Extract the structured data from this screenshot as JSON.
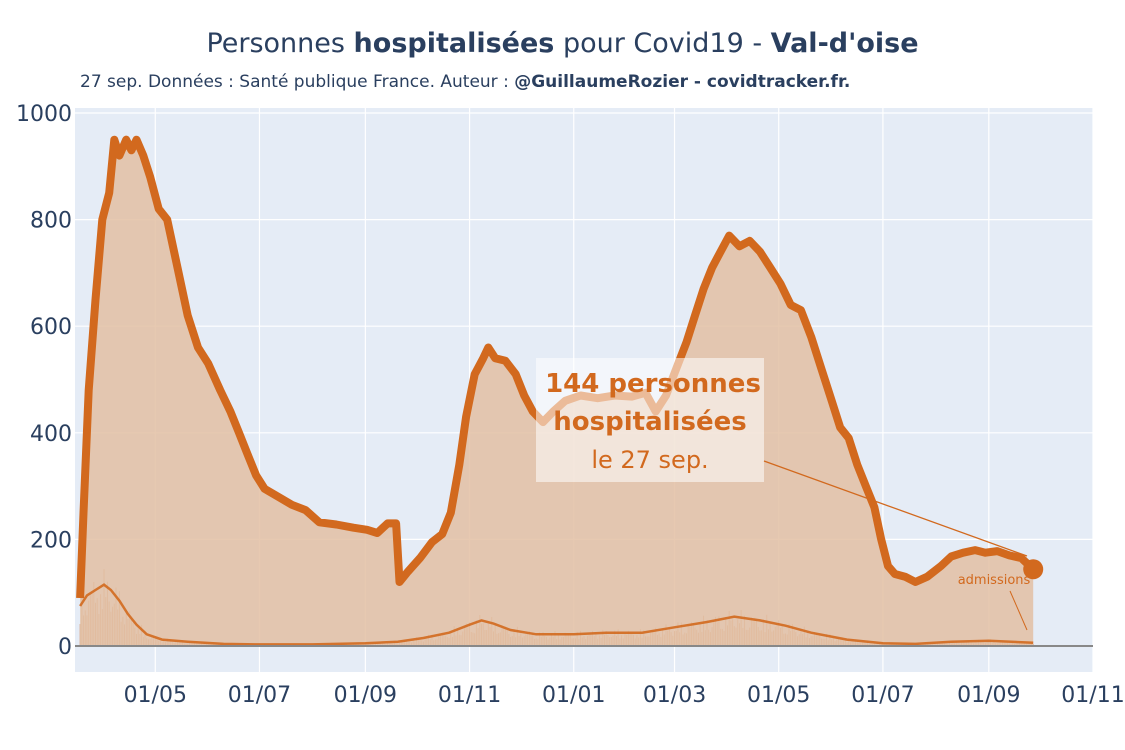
{
  "header": {
    "title_pre": "Personnes ",
    "title_bold1": "hospitalisées",
    "title_mid": " pour Covid19 - ",
    "title_bold2": "Val-d'oise",
    "subtitle_pre": "27 sep. Données : Santé publique France. Auteur : ",
    "subtitle_bold": "@GuillaumeRozier - covidtracker.fr."
  },
  "annotation": {
    "line1": "144 personnes",
    "line2": "hospitalisées",
    "line3": "le 27 sep.",
    "admissions_label": "admissions"
  },
  "colors": {
    "plot_bg": "#e5ecf6",
    "line": "#d2691e",
    "fill": "#e3c0a3",
    "bars": "#d6a585",
    "grid": "#ffffff",
    "zero_line": "#888888"
  },
  "chart_data": {
    "type": "area",
    "xlabel": "",
    "ylabel": "",
    "ylim": [
      0,
      1000
    ],
    "xlim": [
      "2020-03-15",
      "2021-11-01"
    ],
    "grid": true,
    "y_ticks": [
      0,
      200,
      400,
      600,
      800,
      1000
    ],
    "x_ticks": [
      {
        "date": "2020-05-01",
        "label": "01/05"
      },
      {
        "date": "2020-07-01",
        "label": "01/07"
      },
      {
        "date": "2020-09-01",
        "label": "01/09"
      },
      {
        "date": "2020-11-01",
        "label": "01/11"
      },
      {
        "date": "2021-01-01",
        "label": "01/01"
      },
      {
        "date": "2021-03-01",
        "label": "01/03"
      },
      {
        "date": "2021-05-01",
        "label": "01/05"
      },
      {
        "date": "2021-07-01",
        "label": "01/07"
      },
      {
        "date": "2021-09-01",
        "label": "01/09"
      },
      {
        "date": "2021-11-01",
        "label": "01/11"
      }
    ],
    "series": [
      {
        "name": "hospitalisées",
        "points": [
          [
            "2020-03-18",
            90
          ],
          [
            "2020-03-20",
            250
          ],
          [
            "2020-03-23",
            480
          ],
          [
            "2020-03-27",
            650
          ],
          [
            "2020-03-31",
            800
          ],
          [
            "2020-04-04",
            850
          ],
          [
            "2020-04-07",
            950
          ],
          [
            "2020-04-10",
            920
          ],
          [
            "2020-04-14",
            950
          ],
          [
            "2020-04-17",
            930
          ],
          [
            "2020-04-20",
            950
          ],
          [
            "2020-04-24",
            920
          ],
          [
            "2020-04-28",
            880
          ],
          [
            "2020-05-03",
            820
          ],
          [
            "2020-05-08",
            800
          ],
          [
            "2020-05-14",
            710
          ],
          [
            "2020-05-20",
            620
          ],
          [
            "2020-05-26",
            560
          ],
          [
            "2020-06-01",
            530
          ],
          [
            "2020-06-08",
            480
          ],
          [
            "2020-06-14",
            440
          ],
          [
            "2020-06-19",
            400
          ],
          [
            "2020-06-24",
            360
          ],
          [
            "2020-06-29",
            320
          ],
          [
            "2020-07-04",
            295
          ],
          [
            "2020-07-12",
            280
          ],
          [
            "2020-07-20",
            265
          ],
          [
            "2020-07-28",
            255
          ],
          [
            "2020-08-05",
            232
          ],
          [
            "2020-08-15",
            228
          ],
          [
            "2020-08-25",
            222
          ],
          [
            "2020-09-02",
            218
          ],
          [
            "2020-09-08",
            212
          ],
          [
            "2020-09-14",
            230
          ],
          [
            "2020-09-19",
            230
          ],
          [
            "2020-09-21",
            120
          ],
          [
            "2020-09-26",
            140
          ],
          [
            "2020-10-03",
            165
          ],
          [
            "2020-10-10",
            195
          ],
          [
            "2020-10-16",
            210
          ],
          [
            "2020-10-21",
            250
          ],
          [
            "2020-10-26",
            340
          ],
          [
            "2020-10-30",
            430
          ],
          [
            "2020-11-04",
            510
          ],
          [
            "2020-11-09",
            540
          ],
          [
            "2020-11-12",
            560
          ],
          [
            "2020-11-16",
            540
          ],
          [
            "2020-11-22",
            535
          ],
          [
            "2020-11-28",
            510
          ],
          [
            "2020-12-03",
            470
          ],
          [
            "2020-12-08",
            440
          ],
          [
            "2020-12-14",
            420
          ],
          [
            "2020-12-20",
            440
          ],
          [
            "2020-12-27",
            460
          ],
          [
            "2021-01-05",
            470
          ],
          [
            "2021-01-15",
            465
          ],
          [
            "2021-01-25",
            470
          ],
          [
            "2021-02-04",
            468
          ],
          [
            "2021-02-12",
            475
          ],
          [
            "2021-02-18",
            440
          ],
          [
            "2021-02-24",
            470
          ],
          [
            "2021-03-02",
            520
          ],
          [
            "2021-03-08",
            570
          ],
          [
            "2021-03-13",
            620
          ],
          [
            "2021-03-18",
            670
          ],
          [
            "2021-03-23",
            710
          ],
          [
            "2021-03-28",
            740
          ],
          [
            "2021-04-02",
            770
          ],
          [
            "2021-04-08",
            750
          ],
          [
            "2021-04-14",
            760
          ],
          [
            "2021-04-20",
            740
          ],
          [
            "2021-04-26",
            710
          ],
          [
            "2021-05-02",
            680
          ],
          [
            "2021-05-08",
            640
          ],
          [
            "2021-05-14",
            630
          ],
          [
            "2021-05-20",
            580
          ],
          [
            "2021-05-26",
            520
          ],
          [
            "2021-06-01",
            460
          ],
          [
            "2021-06-06",
            410
          ],
          [
            "2021-06-11",
            390
          ],
          [
            "2021-06-16",
            340
          ],
          [
            "2021-06-21",
            300
          ],
          [
            "2021-06-26",
            260
          ],
          [
            "2021-06-30",
            200
          ],
          [
            "2021-07-04",
            150
          ],
          [
            "2021-07-08",
            135
          ],
          [
            "2021-07-14",
            130
          ],
          [
            "2021-07-20",
            120
          ],
          [
            "2021-07-27",
            130
          ],
          [
            "2021-08-04",
            150
          ],
          [
            "2021-08-10",
            168
          ],
          [
            "2021-08-17",
            175
          ],
          [
            "2021-08-24",
            180
          ],
          [
            "2021-08-30",
            175
          ],
          [
            "2021-09-06",
            178
          ],
          [
            "2021-09-13",
            170
          ],
          [
            "2021-09-20",
            165
          ],
          [
            "2021-09-27",
            144
          ]
        ]
      },
      {
        "name": "admissions",
        "points": [
          [
            "2020-03-18",
            75
          ],
          [
            "2020-03-22",
            95
          ],
          [
            "2020-03-27",
            105
          ],
          [
            "2020-04-01",
            115
          ],
          [
            "2020-04-05",
            105
          ],
          [
            "2020-04-10",
            85
          ],
          [
            "2020-04-15",
            60
          ],
          [
            "2020-04-20",
            40
          ],
          [
            "2020-04-26",
            22
          ],
          [
            "2020-05-05",
            12
          ],
          [
            "2020-05-20",
            8
          ],
          [
            "2020-06-10",
            4
          ],
          [
            "2020-07-01",
            3
          ],
          [
            "2020-08-01",
            3
          ],
          [
            "2020-09-01",
            5
          ],
          [
            "2020-09-20",
            8
          ],
          [
            "2020-10-05",
            15
          ],
          [
            "2020-10-20",
            25
          ],
          [
            "2020-11-01",
            40
          ],
          [
            "2020-11-08",
            48
          ],
          [
            "2020-11-15",
            42
          ],
          [
            "2020-11-25",
            30
          ],
          [
            "2020-12-10",
            22
          ],
          [
            "2021-01-01",
            22
          ],
          [
            "2021-01-20",
            25
          ],
          [
            "2021-02-10",
            25
          ],
          [
            "2021-03-01",
            35
          ],
          [
            "2021-03-20",
            45
          ],
          [
            "2021-04-05",
            55
          ],
          [
            "2021-04-20",
            48
          ],
          [
            "2021-05-05",
            38
          ],
          [
            "2021-05-20",
            25
          ],
          [
            "2021-06-10",
            12
          ],
          [
            "2021-07-01",
            5
          ],
          [
            "2021-07-20",
            4
          ],
          [
            "2021-08-10",
            8
          ],
          [
            "2021-09-01",
            10
          ],
          [
            "2021-09-27",
            6
          ]
        ]
      }
    ]
  }
}
